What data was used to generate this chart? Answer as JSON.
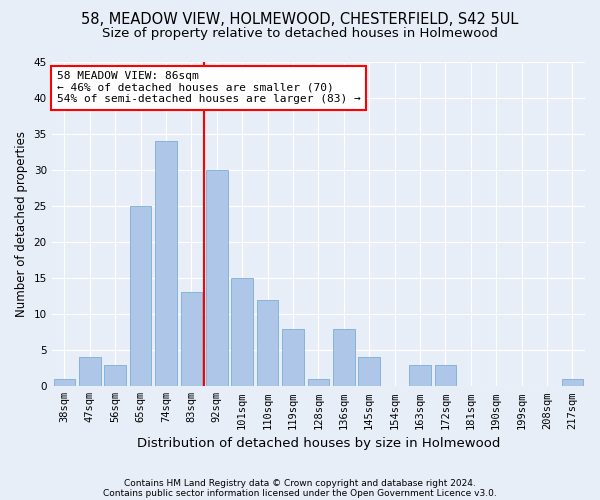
{
  "title1": "58, MEADOW VIEW, HOLMEWOOD, CHESTERFIELD, S42 5UL",
  "title2": "Size of property relative to detached houses in Holmewood",
  "xlabel": "Distribution of detached houses by size in Holmewood",
  "ylabel": "Number of detached properties",
  "categories": [
    "38sqm",
    "47sqm",
    "56sqm",
    "65sqm",
    "74sqm",
    "83sqm",
    "92sqm",
    "101sqm",
    "110sqm",
    "119sqm",
    "128sqm",
    "136sqm",
    "145sqm",
    "154sqm",
    "163sqm",
    "172sqm",
    "181sqm",
    "190sqm",
    "199sqm",
    "208sqm",
    "217sqm"
  ],
  "values": [
    1,
    4,
    3,
    25,
    34,
    13,
    30,
    15,
    12,
    8,
    1,
    8,
    4,
    0,
    3,
    3,
    0,
    0,
    0,
    0,
    1
  ],
  "bar_color": "#aec6e8",
  "bar_edgecolor": "#7bafd4",
  "vline_x": 5.5,
  "annotation_text": "58 MEADOW VIEW: 86sqm\n← 46% of detached houses are smaller (70)\n54% of semi-detached houses are larger (83) →",
  "annotation_box_color": "white",
  "annotation_box_edgecolor": "red",
  "vline_color": "red",
  "ylim": [
    0,
    45
  ],
  "yticks": [
    0,
    5,
    10,
    15,
    20,
    25,
    30,
    35,
    40,
    45
  ],
  "footer1": "Contains HM Land Registry data © Crown copyright and database right 2024.",
  "footer2": "Contains public sector information licensed under the Open Government Licence v3.0.",
  "bg_color": "#e8eef8",
  "grid_color": "white",
  "title_fontsize": 10.5,
  "subtitle_fontsize": 9.5,
  "tick_fontsize": 7.5,
  "ylabel_fontsize": 8.5,
  "xlabel_fontsize": 9.5,
  "footer_fontsize": 6.5
}
